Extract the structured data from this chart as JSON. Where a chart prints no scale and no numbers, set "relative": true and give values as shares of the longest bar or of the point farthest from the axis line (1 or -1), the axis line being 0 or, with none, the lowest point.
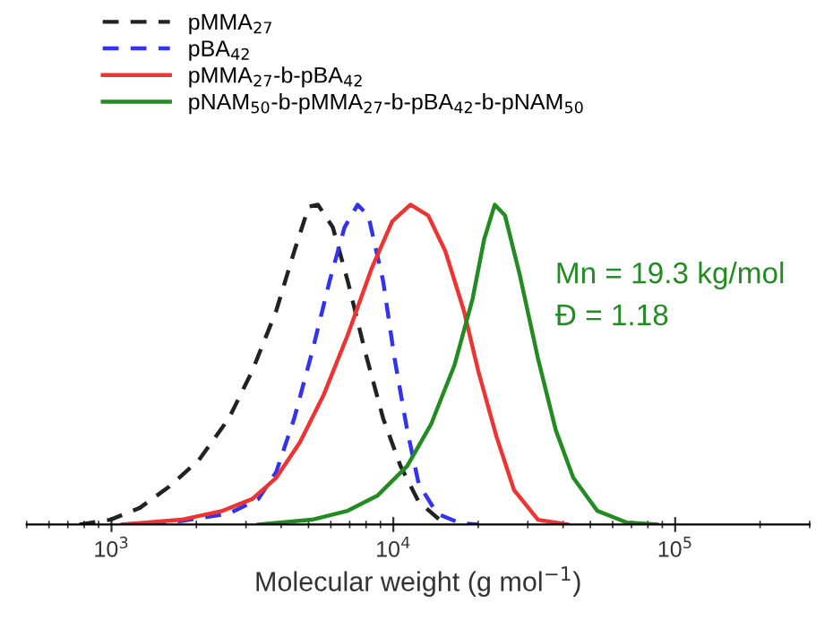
{
  "chart_data": {
    "type": "line",
    "relative": true,
    "xlabel": "Molecular weight (g mol$^{−1}$)",
    "log": "x",
    "xlim": [
      500,
      300000
    ],
    "xticks": [
      {
        "value": 1000,
        "label": "10$^{3}$"
      },
      {
        "value": 10000,
        "label": "10$^{4}$"
      },
      {
        "value": 100000,
        "label": "10$^{5}$"
      }
    ],
    "grid": false,
    "legend": "top left",
    "tick_labels": "x",
    "marker": "none",
    "series": [
      {
        "name": "pMMA$_{27}$",
        "color": "#222222",
        "line_style": "dashed",
        "x": [
          770,
          990,
          1260,
          1600,
          2040,
          2610,
          3160,
          3840,
          4450,
          5010,
          5400,
          6100,
          6890,
          7960,
          9200,
          10600,
          12300,
          15000
        ],
        "values": [
          0,
          0.015,
          0.052,
          0.118,
          0.201,
          0.332,
          0.481,
          0.668,
          0.854,
          0.994,
          1.0,
          0.929,
          0.761,
          0.537,
          0.332,
          0.183,
          0.071,
          0.006
        ]
      },
      {
        "name": "pBA$_{42}$",
        "color": "#3333ee",
        "line_style": "dashed",
        "x": [
          1090,
          1770,
          2610,
          3320,
          3840,
          4450,
          5140,
          5940,
          6710,
          7470,
          8150,
          9200,
          10100,
          11200,
          12300,
          14300,
          17300,
          20000
        ],
        "values": [
          0,
          0.011,
          0.034,
          0.08,
          0.164,
          0.332,
          0.537,
          0.761,
          0.929,
          1.0,
          0.966,
          0.761,
          0.519,
          0.295,
          0.127,
          0.034,
          0.004,
          0
        ]
      },
      {
        "name": "pMMA$_{27}$-b-pBA$_{42}$",
        "color": "#ee3333",
        "line_style": "solid",
        "x": [
          1090,
          1770,
          2480,
          3160,
          3840,
          4660,
          5670,
          6890,
          8360,
          9910,
          11500,
          13300,
          15300,
          17800,
          20000,
          23200,
          26800,
          32600,
          41500
        ],
        "values": [
          0,
          0.015,
          0.043,
          0.08,
          0.146,
          0.257,
          0.407,
          0.593,
          0.799,
          0.948,
          1.0,
          0.966,
          0.854,
          0.668,
          0.481,
          0.276,
          0.108,
          0.015,
          0
        ]
      },
      {
        "name": "pNAM$_{50}$-b-pMMA$_{27}$-b-pBA$_{42}$-b-pNAM$_{50}$",
        "color": "#228b22",
        "line_style": "solid",
        "x": [
          3320,
          5140,
          6890,
          8770,
          11200,
          13600,
          16500,
          19100,
          21000,
          22900,
          24900,
          28100,
          32600,
          37700,
          43500,
          52900,
          67400,
          86000
        ],
        "values": [
          0,
          0.015,
          0.043,
          0.09,
          0.183,
          0.313,
          0.5,
          0.705,
          0.892,
          1.0,
          0.966,
          0.78,
          0.519,
          0.295,
          0.146,
          0.043,
          0.006,
          0
        ]
      }
    ],
    "annotations": [
      "Mn = 19.3 kg/mol",
      "Đ = 1.18"
    ]
  }
}
